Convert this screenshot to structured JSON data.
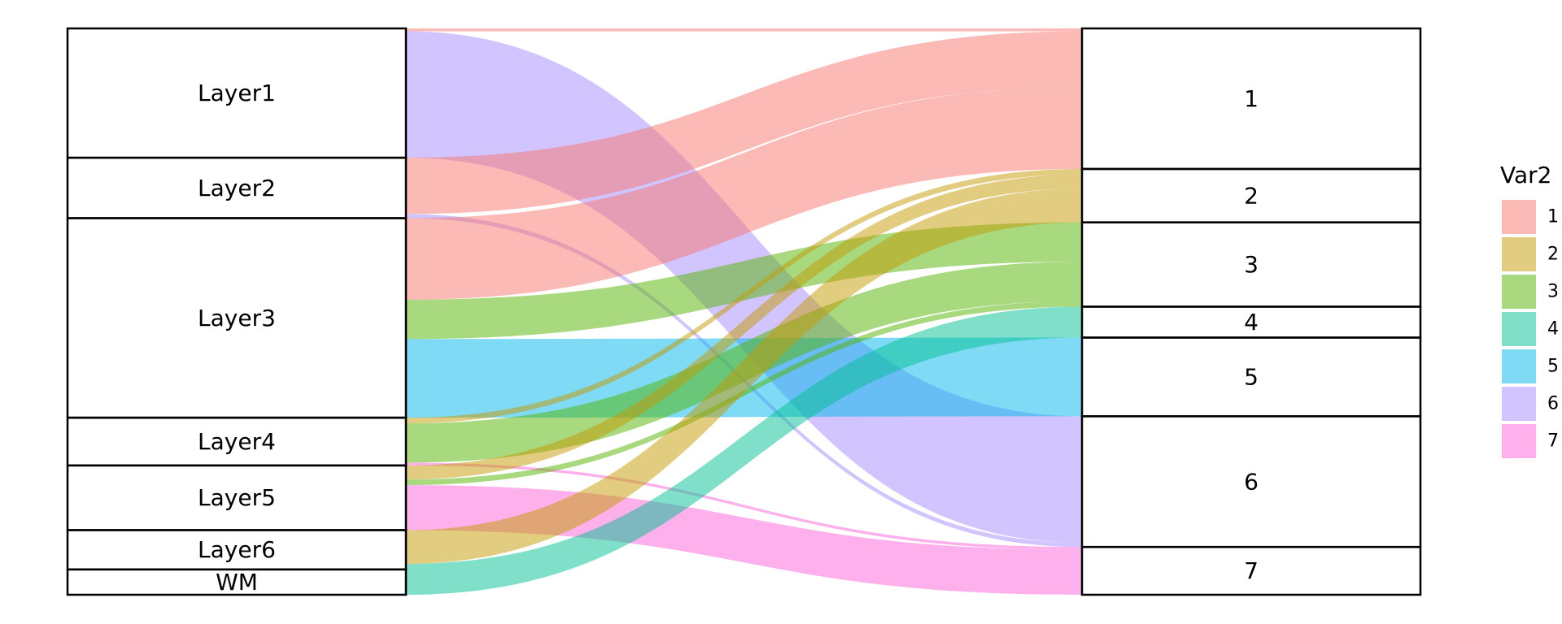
{
  "chart_data": {
    "type": "sankey",
    "left_nodes": [
      "Layer1",
      "Layer2",
      "Layer3",
      "Layer4",
      "Layer5",
      "Layer6",
      "WM"
    ],
    "right_nodes": [
      "1",
      "2",
      "3",
      "4",
      "5",
      "6",
      "7"
    ],
    "legend_title": "Var2",
    "legend_entries": [
      "1",
      "2",
      "3",
      "4",
      "5",
      "6",
      "7"
    ],
    "colors": {
      "1": "#F8766D",
      "2": "#C49A00",
      "3": "#53B400",
      "4": "#00C094",
      "5": "#00B6EB",
      "6": "#A58AFF",
      "7": "#FB61D7"
    },
    "flows": [
      {
        "source": "Layer1",
        "target": "1",
        "value": 1
      },
      {
        "source": "Layer1",
        "target": "6",
        "value": 45
      },
      {
        "source": "Layer2",
        "target": "1",
        "value": 20
      },
      {
        "source": "Layer2",
        "target": "6",
        "value": 1.5
      },
      {
        "source": "Layer3",
        "target": "1",
        "value": 29
      },
      {
        "source": "Layer3",
        "target": "3",
        "value": 14
      },
      {
        "source": "Layer3",
        "target": "5",
        "value": 28
      },
      {
        "source": "Layer4",
        "target": "3",
        "value": 14
      },
      {
        "source": "Layer4",
        "target": "2",
        "value": 2
      },
      {
        "source": "Layer4",
        "target": "7",
        "value": 1
      },
      {
        "source": "Layer5",
        "target": "2",
        "value": 5
      },
      {
        "source": "Layer5",
        "target": "3",
        "value": 2
      },
      {
        "source": "Layer5",
        "target": "7",
        "value": 16
      },
      {
        "source": "Layer6",
        "target": "2",
        "value": 12
      },
      {
        "source": "Layer6",
        "target": "4",
        "value": 2
      },
      {
        "source": "WM",
        "target": "4",
        "value": 9
      }
    ]
  }
}
